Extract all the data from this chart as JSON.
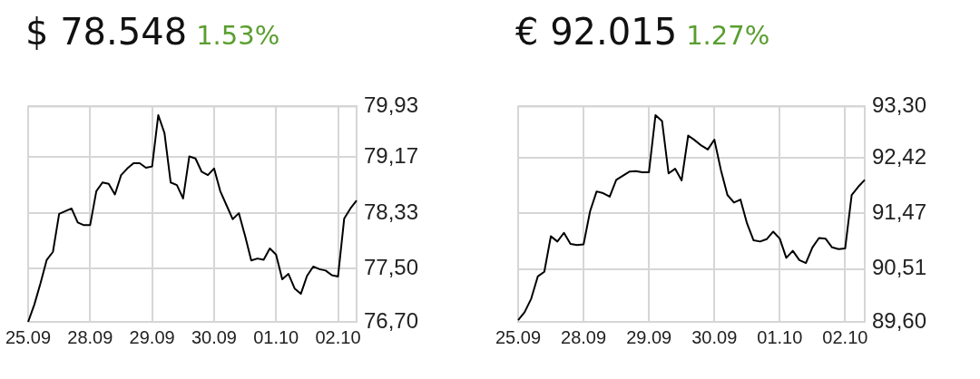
{
  "chart_data": [
    {
      "type": "line",
      "title": "$ 78.548",
      "subtitle": "1.53%",
      "marker": "none",
      "grid": true,
      "categories": [
        "25.09",
        null,
        null,
        null,
        null,
        null,
        null,
        null,
        null,
        null,
        "28.09",
        null,
        null,
        null,
        null,
        null,
        null,
        null,
        null,
        null,
        "29.09",
        null,
        null,
        null,
        null,
        null,
        null,
        null,
        null,
        null,
        "30.09",
        null,
        null,
        null,
        null,
        null,
        null,
        null,
        null,
        null,
        "01.10",
        null,
        null,
        null,
        null,
        null,
        null,
        null,
        null,
        null,
        "02.10",
        null,
        null,
        null
      ],
      "series": [
        {
          "color": "#000000",
          "values": [
            76.7,
            76.96,
            77.28,
            77.63,
            77.75,
            78.32,
            78.36,
            78.4,
            78.19,
            78.15,
            78.15,
            78.66,
            78.79,
            78.77,
            78.61,
            78.9,
            79.0,
            79.08,
            79.08,
            79.01,
            79.03,
            79.8,
            79.53,
            78.79,
            78.75,
            78.55,
            79.18,
            79.15,
            78.95,
            78.9,
            79.0,
            78.66,
            78.45,
            78.24,
            78.33,
            77.99,
            77.62,
            77.65,
            77.63,
            77.8,
            77.71,
            77.34,
            77.42,
            77.2,
            77.12,
            77.39,
            77.53,
            77.49,
            77.47,
            77.4,
            77.38,
            78.25,
            78.4,
            78.52
          ]
        }
      ],
      "ylim": [
        76.7,
        79.93
      ],
      "yticks": [
        {
          "value": 76.7,
          "label": "76,70"
        },
        {
          "value": 77.5,
          "label": "77,50"
        },
        {
          "value": 78.33,
          "label": "78,33"
        },
        {
          "value": 79.17,
          "label": "79,17"
        },
        {
          "value": 79.93,
          "label": "79,93"
        }
      ]
    },
    {
      "type": "line",
      "title": "€ 92.015",
      "subtitle": "1.27%",
      "marker": "none",
      "grid": true,
      "categories": [
        "25.09",
        null,
        null,
        null,
        null,
        null,
        null,
        null,
        null,
        null,
        "28.09",
        null,
        null,
        null,
        null,
        null,
        null,
        null,
        null,
        null,
        "29.09",
        null,
        null,
        null,
        null,
        null,
        null,
        null,
        null,
        null,
        "30.09",
        null,
        null,
        null,
        null,
        null,
        null,
        null,
        null,
        null,
        "01.10",
        null,
        null,
        null,
        null,
        null,
        null,
        null,
        null,
        null,
        "02.10",
        null,
        null,
        null
      ],
      "series": [
        {
          "color": "#000000",
          "values": [
            89.63,
            89.77,
            90.0,
            90.38,
            90.46,
            91.07,
            90.98,
            91.13,
            90.94,
            90.92,
            90.93,
            91.5,
            91.84,
            91.81,
            91.75,
            92.04,
            92.11,
            92.18,
            92.19,
            92.17,
            92.17,
            93.15,
            93.05,
            92.15,
            92.23,
            92.03,
            92.8,
            92.72,
            92.63,
            92.56,
            92.73,
            92.21,
            91.78,
            91.65,
            91.7,
            91.29,
            91.0,
            90.98,
            91.02,
            91.15,
            91.03,
            90.7,
            90.82,
            90.66,
            90.61,
            90.88,
            91.04,
            91.03,
            90.88,
            90.85,
            90.86,
            91.78,
            91.92,
            92.04
          ]
        }
      ],
      "ylim": [
        89.6,
        93.3
      ],
      "yticks": [
        {
          "value": 89.6,
          "label": "89,60"
        },
        {
          "value": 90.51,
          "label": "90,51"
        },
        {
          "value": 91.47,
          "label": "91,47"
        },
        {
          "value": 92.42,
          "label": "92,42"
        },
        {
          "value": 93.3,
          "label": "93,30"
        }
      ]
    }
  ]
}
